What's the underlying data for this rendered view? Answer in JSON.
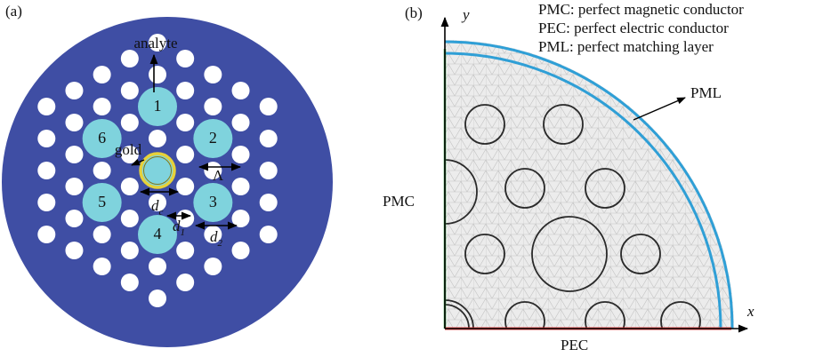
{
  "panel_a": {
    "label": "(a)",
    "core_labels": [
      "1",
      "2",
      "3",
      "4",
      "5",
      "6"
    ],
    "annotations": {
      "analyte": "analyte",
      "gold": "gold",
      "pitch": "Λ",
      "d_c": {
        "main": "d",
        "sub": "c"
      },
      "d_1": {
        "main": "d",
        "sub": "1"
      },
      "d_2": {
        "main": "d",
        "sub": "2"
      }
    }
  },
  "panel_b": {
    "label": "(b)",
    "y_axis": "y",
    "x_axis": "x",
    "legend": [
      "PMC: perfect magnetic conductor",
      "PEC: perfect electric conductor",
      "PML: perfect matching layer"
    ],
    "boundaries": {
      "pml": "PML",
      "pmc": "PMC",
      "pec": "PEC"
    }
  }
}
